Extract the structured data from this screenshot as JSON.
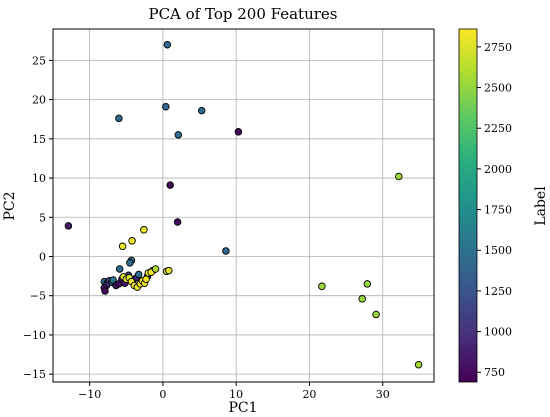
{
  "chart_data": {
    "type": "scatter",
    "title": "PCA of Top 200 Features",
    "xlabel": "PC1",
    "ylabel": "PC2",
    "xlim": [
      -15,
      37
    ],
    "ylim": [
      -16,
      29
    ],
    "xticks": [
      -10,
      0,
      10,
      20,
      30
    ],
    "yticks": [
      -15,
      -10,
      -5,
      0,
      5,
      10,
      15,
      20,
      25
    ],
    "grid": true,
    "colormap": "viridis",
    "colorbar": {
      "label": "Label",
      "range": [
        690,
        2860
      ],
      "ticks": [
        750,
        1000,
        1250,
        1500,
        1750,
        2000,
        2250,
        2500,
        2750
      ]
    },
    "points": [
      {
        "x": 0.6,
        "y": 27.0,
        "label": 1450
      },
      {
        "x": 0.4,
        "y": 19.1,
        "label": 1430
      },
      {
        "x": -6.0,
        "y": 17.6,
        "label": 1440
      },
      {
        "x": 5.3,
        "y": 18.6,
        "label": 1450
      },
      {
        "x": 2.1,
        "y": 15.5,
        "label": 1460
      },
      {
        "x": 10.3,
        "y": 15.9,
        "label": 760
      },
      {
        "x": 1.0,
        "y": 9.1,
        "label": 720
      },
      {
        "x": 2.0,
        "y": 4.4,
        "label": 760
      },
      {
        "x": -12.9,
        "y": 3.9,
        "label": 850
      },
      {
        "x": 8.6,
        "y": 0.7,
        "label": 1430
      },
      {
        "x": 32.2,
        "y": 10.2,
        "label": 2530
      },
      {
        "x": 21.7,
        "y": -3.8,
        "label": 2530
      },
      {
        "x": 27.9,
        "y": -3.5,
        "label": 2500
      },
      {
        "x": 27.2,
        "y": -5.4,
        "label": 2520
      },
      {
        "x": 29.1,
        "y": -7.4,
        "label": 2520
      },
      {
        "x": 34.9,
        "y": -13.8,
        "label": 2550
      },
      {
        "x": -2.6,
        "y": 3.4,
        "label": 2800
      },
      {
        "x": -4.2,
        "y": 2.0,
        "label": 2800
      },
      {
        "x": -5.5,
        "y": 1.3,
        "label": 2780
      },
      {
        "x": -4.3,
        "y": -0.5,
        "label": 1440
      },
      {
        "x": -4.5,
        "y": -0.8,
        "label": 1460
      },
      {
        "x": -5.9,
        "y": -1.6,
        "label": 1460
      },
      {
        "x": -8.0,
        "y": -3.2,
        "label": 1380
      },
      {
        "x": -7.6,
        "y": -3.4,
        "label": 1250
      },
      {
        "x": -7.3,
        "y": -3.1,
        "label": 1200
      },
      {
        "x": -7.0,
        "y": -3.3,
        "label": 1300
      },
      {
        "x": -6.8,
        "y": -3.0,
        "label": 1550
      },
      {
        "x": -7.7,
        "y": -3.7,
        "label": 1000
      },
      {
        "x": -8.0,
        "y": -4.0,
        "label": 800
      },
      {
        "x": -7.9,
        "y": -4.4,
        "label": 760
      },
      {
        "x": -6.4,
        "y": -3.7,
        "label": 800
      },
      {
        "x": -6.0,
        "y": -3.5,
        "label": 760
      },
      {
        "x": -5.6,
        "y": -2.9,
        "label": 760
      },
      {
        "x": -5.2,
        "y": -3.4,
        "label": 820
      },
      {
        "x": -4.7,
        "y": -2.4,
        "label": 1100
      },
      {
        "x": -4.1,
        "y": -3.0,
        "label": 1350
      },
      {
        "x": -3.6,
        "y": -2.7,
        "label": 900
      },
      {
        "x": -3.3,
        "y": -2.3,
        "label": 1500
      },
      {
        "x": -2.1,
        "y": -2.5,
        "label": 1000
      },
      {
        "x": -1.9,
        "y": -2.1,
        "label": 1300
      },
      {
        "x": -1.4,
        "y": -1.8,
        "label": 800
      },
      {
        "x": -5.4,
        "y": -2.6,
        "label": 2750
      },
      {
        "x": -5.0,
        "y": -2.9,
        "label": 2800
      },
      {
        "x": -4.6,
        "y": -2.7,
        "label": 2720
      },
      {
        "x": -4.3,
        "y": -3.2,
        "label": 2820
      },
      {
        "x": -3.9,
        "y": -3.7,
        "label": 2790
      },
      {
        "x": -3.5,
        "y": -3.9,
        "label": 2760
      },
      {
        "x": -3.1,
        "y": -3.5,
        "label": 2850
      },
      {
        "x": -2.8,
        "y": -3.1,
        "label": 2800
      },
      {
        "x": -2.5,
        "y": -3.4,
        "label": 2770
      },
      {
        "x": -2.3,
        "y": -2.9,
        "label": 2820
      },
      {
        "x": -2.0,
        "y": -2.1,
        "label": 2780
      },
      {
        "x": -1.6,
        "y": -2.0,
        "label": 2810
      },
      {
        "x": -1.0,
        "y": -1.6,
        "label": 2600
      },
      {
        "x": 0.5,
        "y": -1.9,
        "label": 2700
      },
      {
        "x": 0.8,
        "y": -1.8,
        "label": 2760
      }
    ]
  }
}
